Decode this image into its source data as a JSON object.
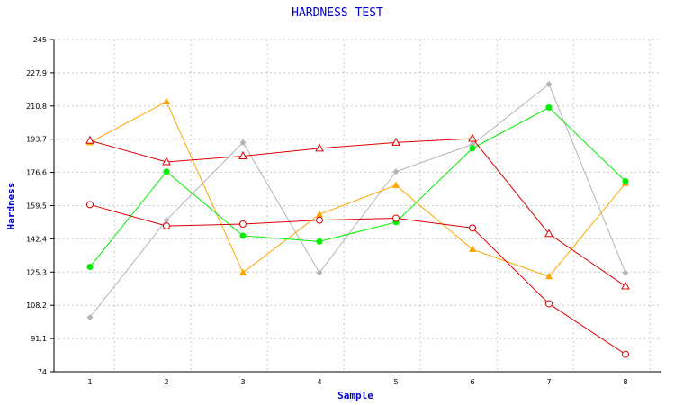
{
  "chart_data": {
    "type": "line",
    "title": "HARDNESS TEST",
    "xlabel": "Sample",
    "ylabel": "Hardness",
    "categories": [
      "1",
      "2",
      "3",
      "4",
      "5",
      "6",
      "7",
      "8"
    ],
    "yticks": [
      "74",
      "91.1",
      "108.2",
      "125.3",
      "142.4",
      "159.5",
      "176.6",
      "193.7",
      "210.8",
      "227.9",
      "245"
    ],
    "ylim": [
      74,
      245
    ],
    "grid": true,
    "series": [
      {
        "color": "#b4b4b4",
        "marker": "diamond",
        "values": [
          102,
          152,
          192,
          125,
          177,
          191,
          222,
          125
        ]
      },
      {
        "color": "#ffa500",
        "marker": "triangle-filled",
        "values": [
          192,
          213,
          125,
          155,
          170,
          137,
          123,
          171
        ]
      },
      {
        "color": "#00ee00",
        "marker": "circle-filled",
        "values": [
          128,
          177,
          144,
          141,
          151,
          189,
          210,
          172
        ]
      },
      {
        "color": "#dd0000",
        "marker": "triangle-open",
        "values": [
          193,
          182,
          185,
          189,
          192,
          194,
          145,
          118
        ]
      },
      {
        "color": "#dd0000",
        "marker": "circle-open",
        "values": [
          160,
          149,
          150,
          152,
          153,
          148,
          109,
          83
        ]
      }
    ]
  }
}
